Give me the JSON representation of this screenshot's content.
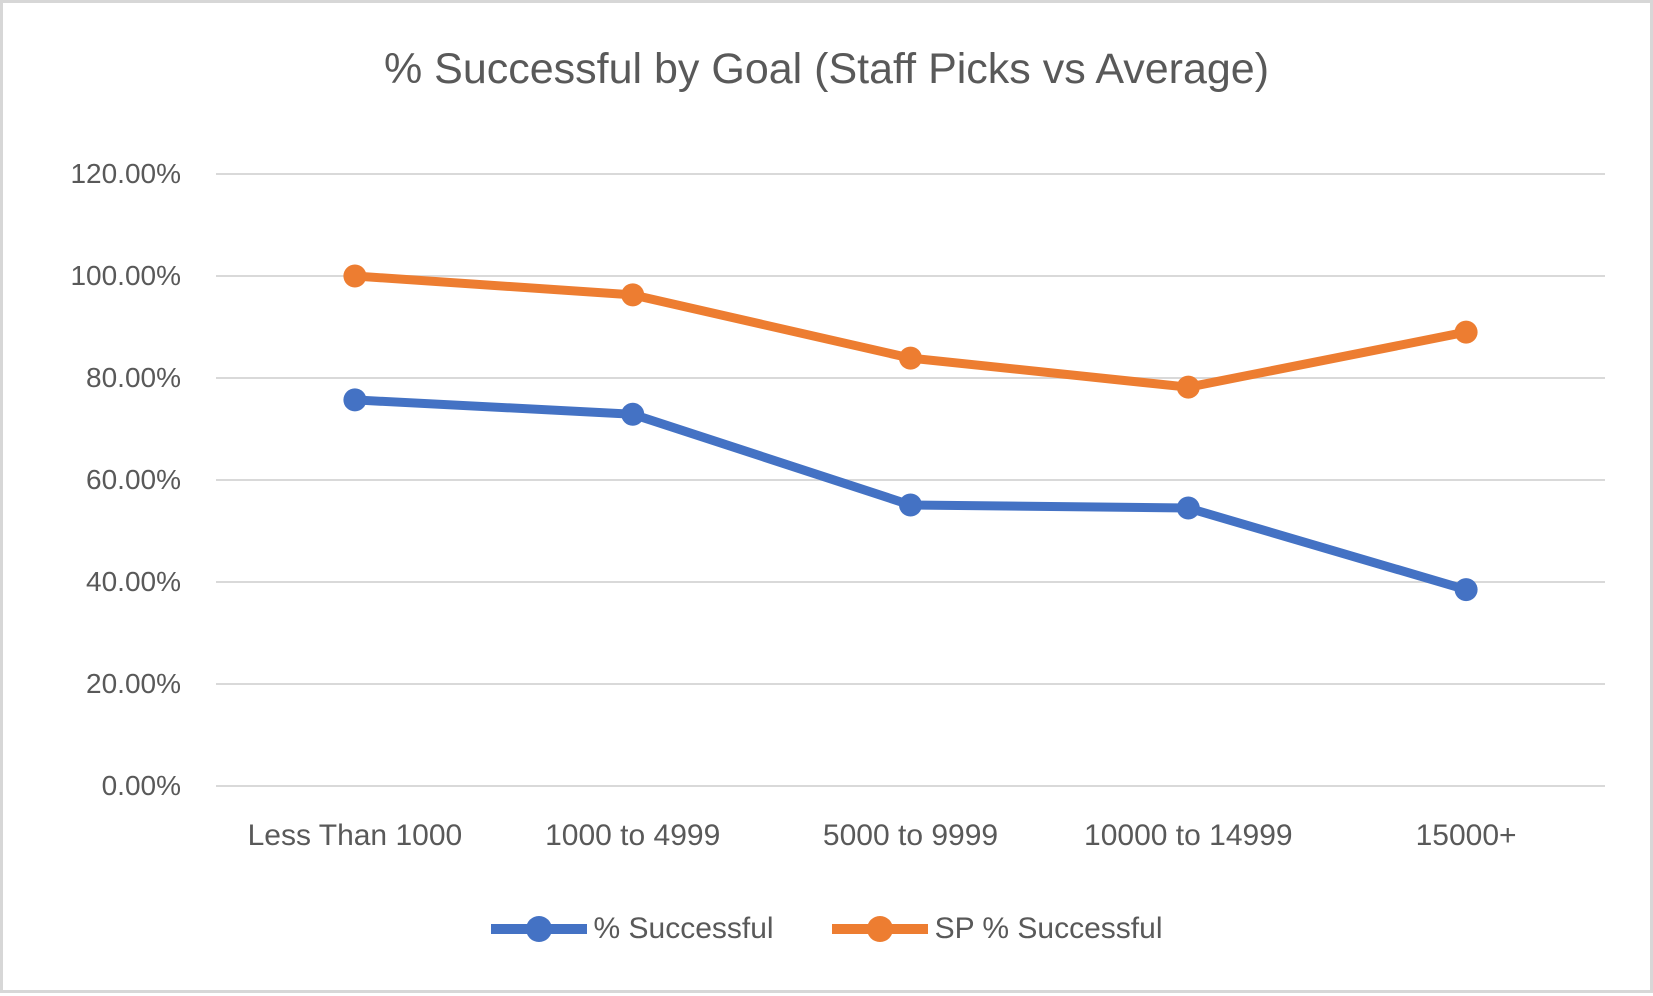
{
  "chart": {
    "title": "% Successful by Goal (Staff Picks vs Average)"
  },
  "chart_data": {
    "type": "line",
    "title": "% Successful by Goal (Staff Picks vs Average)",
    "categories": [
      "Less Than 1000",
      "1000 to 4999",
      "5000 to 9999",
      "10000 to 14999",
      "15000+"
    ],
    "series": [
      {
        "name": "% Successful",
        "color": "#4472C4",
        "values": [
          75.7,
          72.9,
          55.1,
          54.5,
          38.5
        ]
      },
      {
        "name": "SP % Successful",
        "color": "#ED7D31",
        "values": [
          100.0,
          96.3,
          83.9,
          78.2,
          89.0
        ]
      }
    ],
    "values_unit": "percent",
    "y_tick_labels": [
      "0.00%",
      "20.00%",
      "40.00%",
      "60.00%",
      "80.00%",
      "100.00%",
      "120.00%"
    ],
    "y_tick_values": [
      0,
      20,
      40,
      60,
      80,
      100,
      120
    ],
    "ylim": [
      0,
      120
    ],
    "xlabel": "",
    "ylabel": "",
    "grid": true,
    "legend_position": "bottom"
  },
  "colors": {
    "text": "#595959",
    "gridline": "#D9D9D9",
    "border": "#D7D7D7",
    "background": "#FFFFFF",
    "series_blue": "#4472C4",
    "series_orange": "#ED7D31"
  }
}
